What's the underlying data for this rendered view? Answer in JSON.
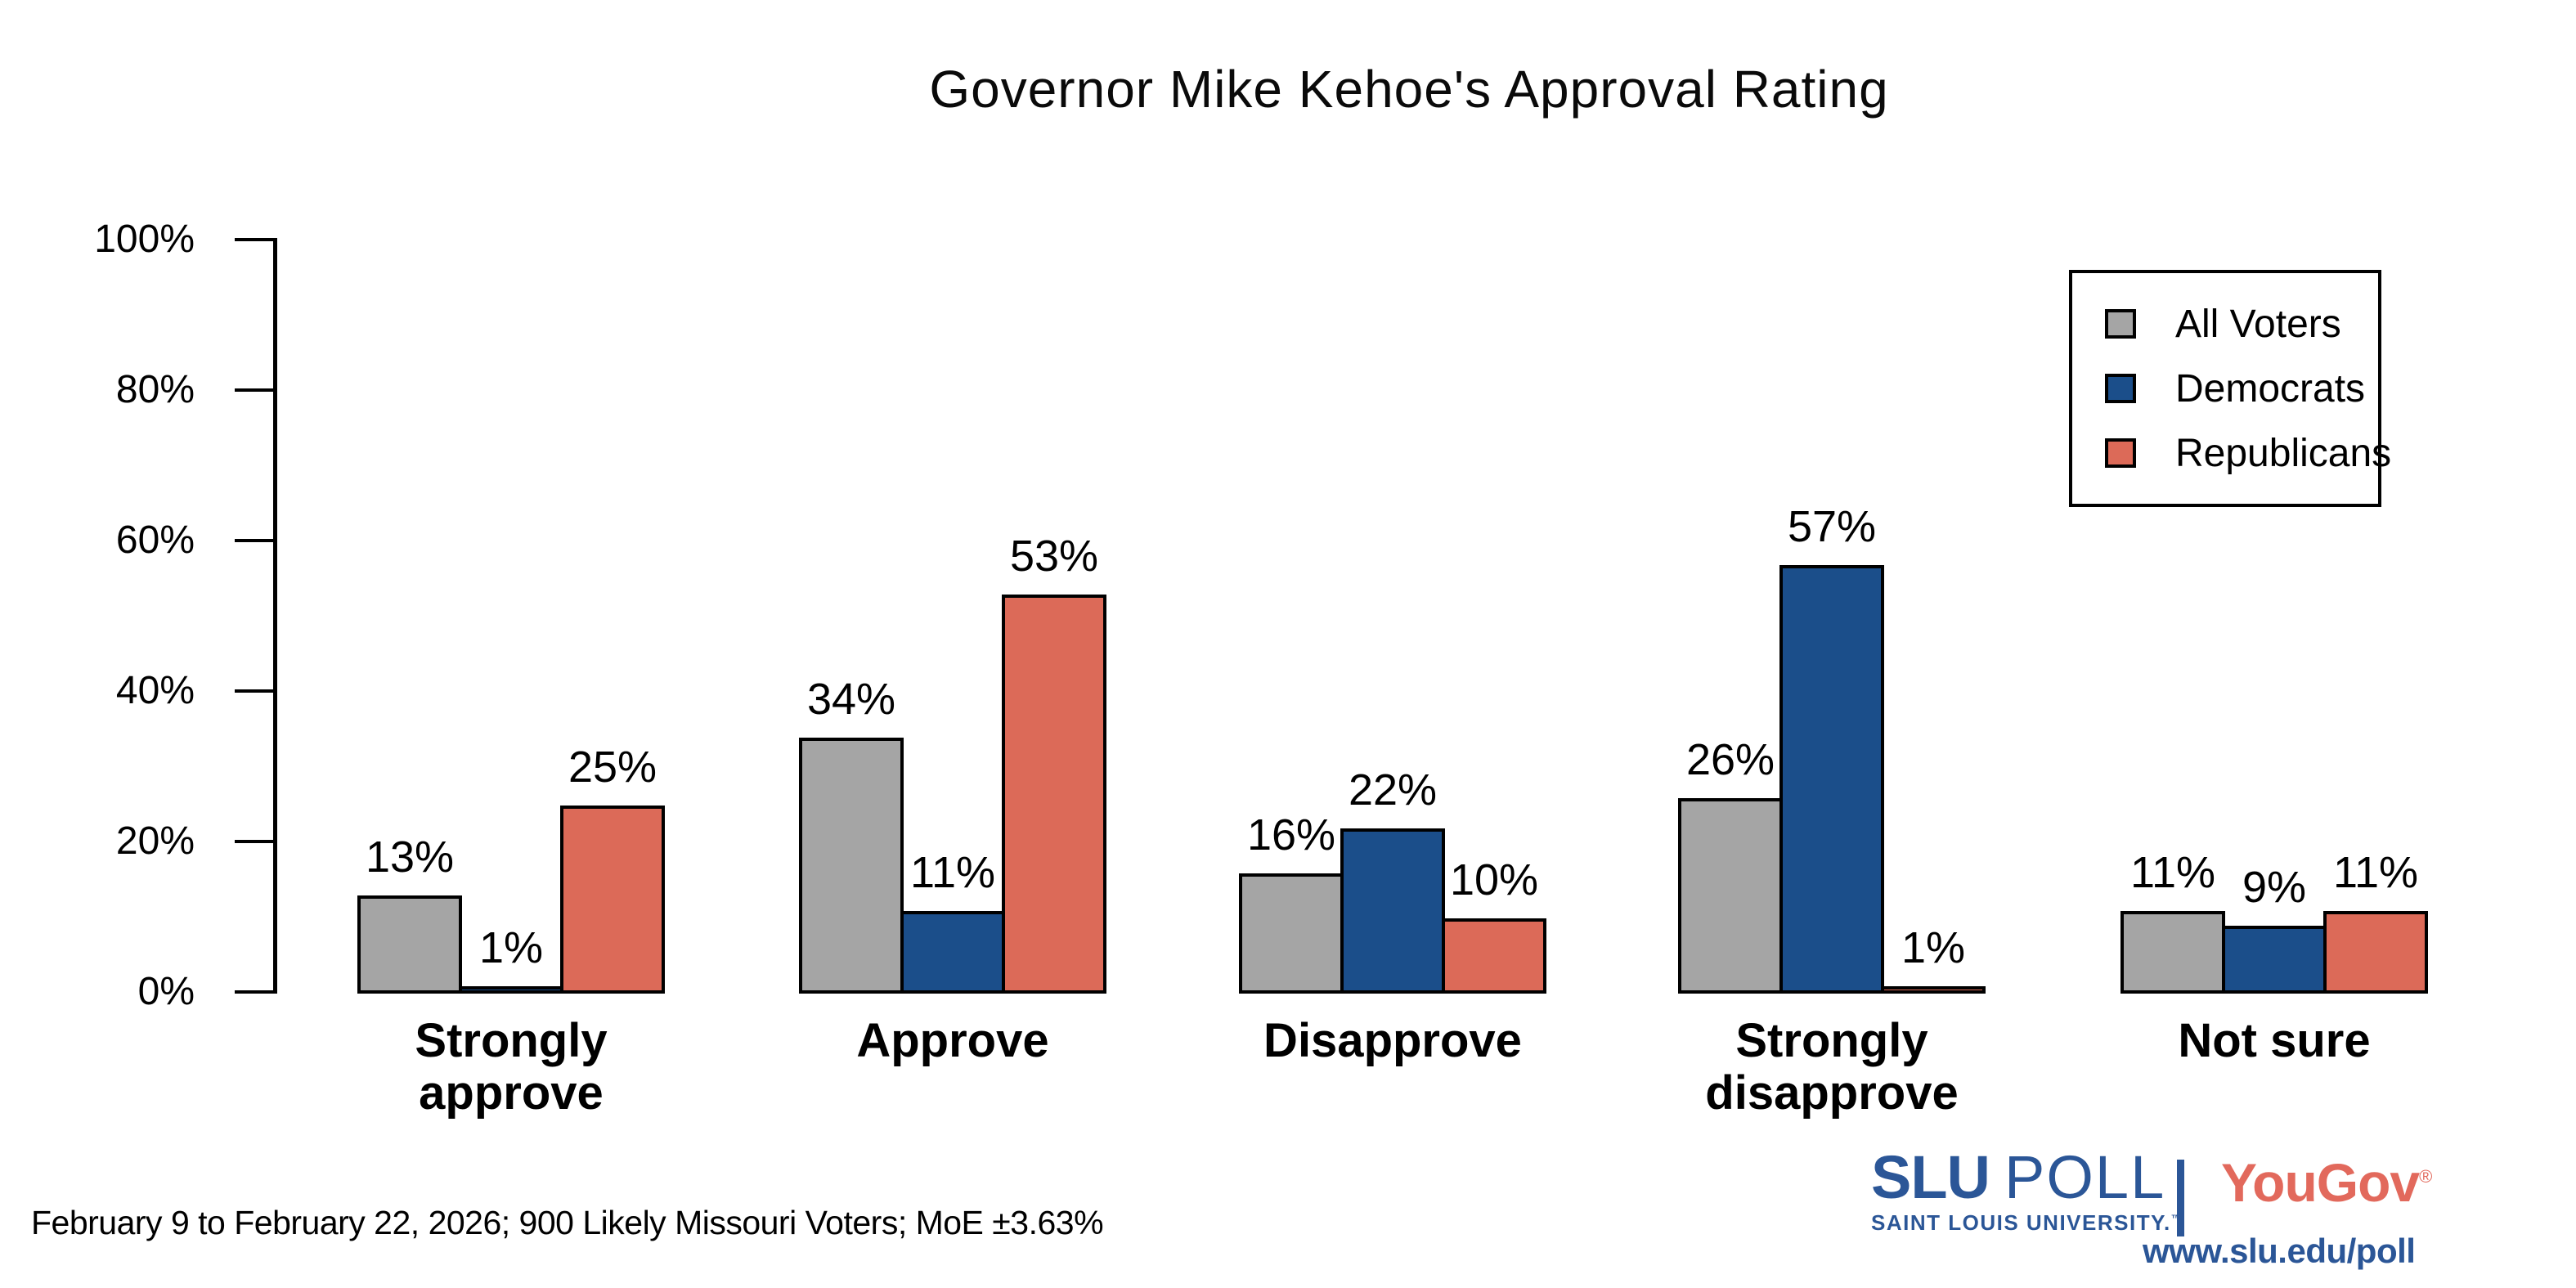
{
  "title": "Governor Mike Kehoe's Approval Rating",
  "chart_data": {
    "type": "bar",
    "title": "Governor Mike Kehoe's Approval Rating",
    "categories": [
      "Strongly approve",
      "Approve",
      "Disapprove",
      "Strongly disapprove",
      "Not sure"
    ],
    "categories_display": [
      "Strongly\napprove",
      "Approve",
      "Disapprove",
      "Strongly\ndisapprove",
      "Not sure"
    ],
    "series": [
      {
        "name": "All Voters",
        "color": "#a5a5a5",
        "values": [
          13,
          34,
          16,
          26,
          11
        ]
      },
      {
        "name": "Democrats",
        "color": "#1b4e8a",
        "values": [
          1,
          11,
          22,
          57,
          9
        ]
      },
      {
        "name": "Republicans",
        "color": "#dc6a58",
        "values": [
          25,
          53,
          10,
          1,
          11
        ]
      }
    ],
    "value_suffix": "%",
    "xlabel": "",
    "ylabel": "",
    "ylim": [
      0,
      100
    ],
    "yticks": [
      "0%",
      "20%",
      "40%",
      "60%",
      "80%",
      "100%"
    ],
    "grid": false,
    "legend_position": "top-right",
    "bar_edge_color": "#000000"
  },
  "footer": {
    "note": "February 9 to February 22, 2026; 900 Likely Missouri Voters; MoE ±3.63%"
  },
  "branding": {
    "slu_name": "SLU",
    "slu_poll": "POLL",
    "slu_subtitle": "SAINT LOUIS UNIVERSITY.",
    "slu_trademark": "™",
    "yougov_name": "YouGov",
    "yougov_registered": "®",
    "url": "www.slu.edu/poll",
    "slu_blue": "#2b5697",
    "yougov_red": "#e2695c"
  }
}
